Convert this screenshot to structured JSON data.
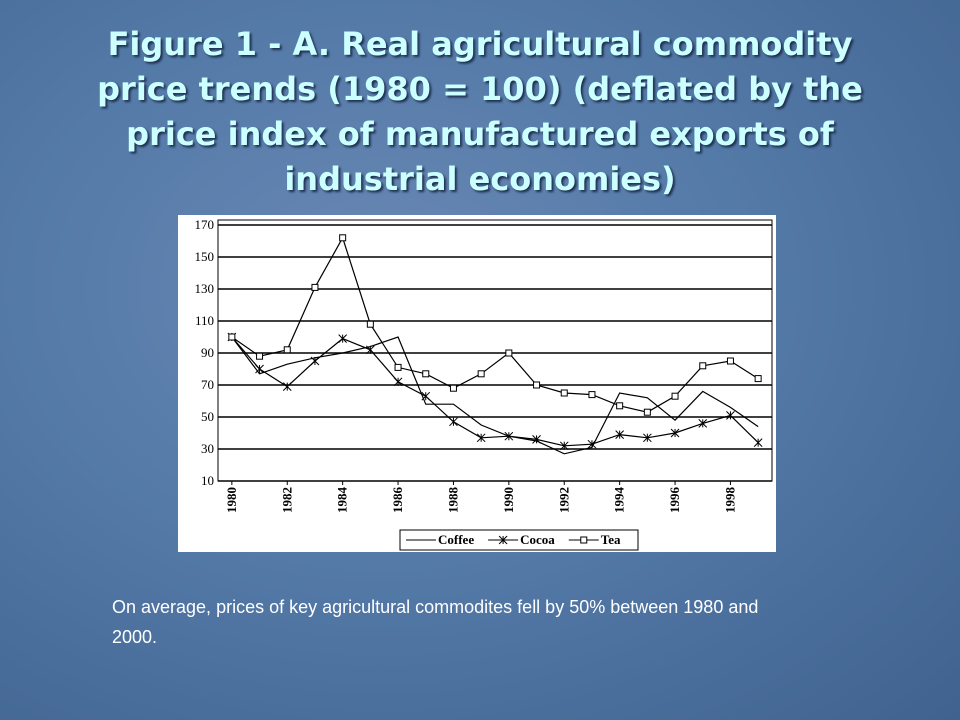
{
  "chart_data": {
    "type": "line",
    "title": "Figure 1 - A. Real agricultural commodity price trends (1980 = 100) (deflated by the price index of manufactured exports of industrial economies)",
    "x": [
      1980,
      1981,
      1982,
      1983,
      1984,
      1985,
      1986,
      1987,
      1988,
      1989,
      1990,
      1991,
      1992,
      1993,
      1994,
      1995,
      1996,
      1997,
      1998,
      1999
    ],
    "xlim": [
      1979.5,
      1999.5
    ],
    "xticks": [
      1980,
      1982,
      1984,
      1986,
      1988,
      1990,
      1992,
      1994,
      1996,
      1998
    ],
    "ylim": [
      10,
      170
    ],
    "yticks": [
      10,
      30,
      50,
      70,
      90,
      110,
      130,
      150,
      170
    ],
    "grid": true,
    "series": [
      {
        "name": "Coffee",
        "color": "#000000",
        "marker": "none",
        "values": [
          100,
          77,
          83,
          87,
          90,
          94,
          100,
          58,
          58,
          45,
          38,
          35,
          27,
          31,
          65,
          62,
          48,
          66,
          56,
          44
        ]
      },
      {
        "name": "Cocoa",
        "color": "#000000",
        "marker": "asterisk",
        "values": [
          100,
          80,
          69,
          85,
          99,
          92,
          72,
          63,
          47,
          37,
          38,
          36,
          32,
          33,
          39,
          37,
          40,
          46,
          51,
          34
        ]
      },
      {
        "name": "Tea",
        "color": "#000000",
        "marker": "square",
        "values": [
          100,
          88,
          92,
          131,
          162,
          108,
          81,
          77,
          68,
          77,
          90,
          70,
          65,
          64,
          57,
          53,
          63,
          82,
          85,
          74
        ]
      }
    ]
  },
  "caption": "On average, prices of key agricultural commodites fell by 50% between 1980 and 2000."
}
